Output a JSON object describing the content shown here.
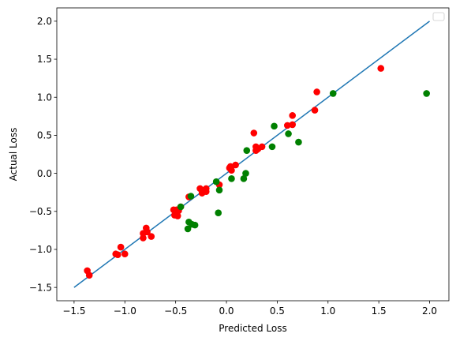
{
  "chart_data": {
    "type": "scatter",
    "title": "",
    "xlabel": "Predicted Loss",
    "ylabel": "Actual Loss",
    "xlim": [
      -1.67,
      2.19
    ],
    "ylim": [
      -1.675,
      2.175
    ],
    "xticks": [
      -1.5,
      -1.0,
      -0.5,
      0.0,
      0.5,
      1.0,
      1.5,
      2.0
    ],
    "xtick_labels": [
      "−1.5",
      "−1.0",
      "−0.5",
      "0.0",
      "0.5",
      "1.0",
      "1.5",
      "2.0"
    ],
    "yticks": [
      -1.5,
      -1.0,
      -0.5,
      0.0,
      0.5,
      1.0,
      1.5,
      2.0
    ],
    "ytick_labels": [
      "−1.5",
      "−1.0",
      "−0.5",
      "0.0",
      "0.5",
      "1.0",
      "1.5",
      "2.0"
    ],
    "grid": false,
    "legend": {
      "placement": "top-right",
      "entries": []
    },
    "reference_line": {
      "x": [
        -1.5,
        2.0
      ],
      "y": [
        -1.5,
        2.0
      ],
      "color": "#1f77b4"
    },
    "series": [
      {
        "color": "#ff0000",
        "points": [
          [
            -1.37,
            -1.28
          ],
          [
            -1.35,
            -1.34
          ],
          [
            -1.09,
            -1.06
          ],
          [
            -1.07,
            -1.07
          ],
          [
            -1.04,
            -0.97
          ],
          [
            -1.0,
            -1.06
          ],
          [
            -0.82,
            -0.85
          ],
          [
            -0.82,
            -0.79
          ],
          [
            -0.79,
            -0.72
          ],
          [
            -0.78,
            -0.77
          ],
          [
            -0.74,
            -0.83
          ],
          [
            -0.52,
            -0.48
          ],
          [
            -0.51,
            -0.55
          ],
          [
            -0.49,
            -0.48
          ],
          [
            -0.48,
            -0.56
          ],
          [
            -0.47,
            -0.49
          ],
          [
            -0.45,
            -0.44
          ],
          [
            -0.37,
            -0.31
          ],
          [
            -0.26,
            -0.2
          ],
          [
            -0.24,
            -0.26
          ],
          [
            -0.2,
            -0.24
          ],
          [
            -0.2,
            -0.2
          ],
          [
            -0.07,
            -0.15
          ],
          [
            0.03,
            0.07
          ],
          [
            0.04,
            0.09
          ],
          [
            0.05,
            0.04
          ],
          [
            0.09,
            0.11
          ],
          [
            0.27,
            0.53
          ],
          [
            0.29,
            0.3
          ],
          [
            0.29,
            0.35
          ],
          [
            0.31,
            0.32
          ],
          [
            0.35,
            0.35
          ],
          [
            0.6,
            0.63
          ],
          [
            0.65,
            0.64
          ],
          [
            0.65,
            0.76
          ],
          [
            0.87,
            0.83
          ],
          [
            0.89,
            1.07
          ],
          [
            1.52,
            1.38
          ]
        ]
      },
      {
        "color": "#008000",
        "points": [
          [
            -0.45,
            -0.44
          ],
          [
            -0.38,
            -0.73
          ],
          [
            -0.37,
            -0.64
          ],
          [
            -0.34,
            -0.67
          ],
          [
            -0.31,
            -0.68
          ],
          [
            -0.35,
            -0.3
          ],
          [
            -0.1,
            -0.11
          ],
          [
            -0.08,
            -0.52
          ],
          [
            -0.07,
            -0.22
          ],
          [
            0.05,
            -0.07
          ],
          [
            0.17,
            -0.07
          ],
          [
            0.19,
            0.0
          ],
          [
            0.2,
            0.3
          ],
          [
            0.45,
            0.35
          ],
          [
            0.47,
            0.62
          ],
          [
            0.61,
            0.52
          ],
          [
            0.71,
            0.41
          ],
          [
            1.05,
            1.05
          ],
          [
            1.97,
            1.05
          ]
        ]
      }
    ]
  }
}
